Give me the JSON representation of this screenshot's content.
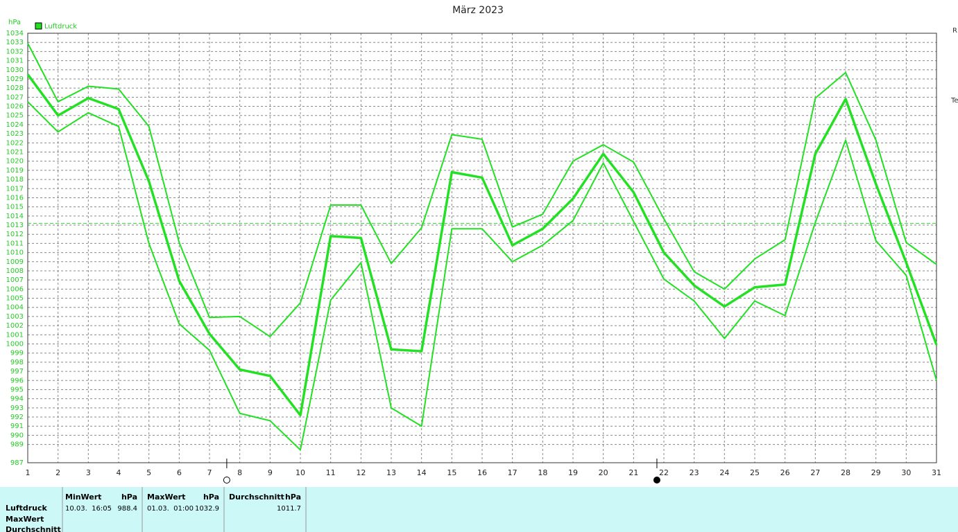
{
  "chart_data": {
    "type": "line",
    "title": "März 2023",
    "y_unit": "hPa",
    "legend": "Luftdruck",
    "color": "#22e022",
    "x": [
      1,
      2,
      3,
      4,
      5,
      6,
      7,
      8,
      9,
      10,
      11,
      12,
      13,
      14,
      15,
      16,
      17,
      18,
      19,
      20,
      21,
      22,
      23,
      24,
      25,
      26,
      27,
      28,
      29,
      30,
      31
    ],
    "xlim": [
      1,
      31
    ],
    "ylim": [
      987,
      1034
    ],
    "yticks": [
      987,
      989,
      990,
      991,
      992,
      993,
      994,
      995,
      996,
      997,
      998,
      999,
      1000,
      1001,
      1002,
      1003,
      1004,
      1005,
      1006,
      1007,
      1008,
      1009,
      1010,
      1011,
      1012,
      1013,
      1014,
      1015,
      1016,
      1017,
      1018,
      1019,
      1020,
      1021,
      1022,
      1023,
      1024,
      1025,
      1026,
      1027,
      1028,
      1029,
      1030,
      1031,
      1032,
      1033,
      1034
    ],
    "grid": true,
    "mean_line": 1013.2,
    "moon_markers": [
      {
        "x": 7.57,
        "filled": false
      },
      {
        "x": 21.77,
        "filled": true
      }
    ],
    "series": [
      {
        "color": "#22e022",
        "thick": false,
        "values": [
          1032.9,
          1026.5,
          1028.2,
          1027.9,
          1023.8,
          1011.1,
          1002.9,
          1003.0,
          1000.8,
          1004.5,
          1015.2,
          1015.2,
          1008.8,
          1012.7,
          1022.9,
          1022.4,
          1012.8,
          1014.2,
          1020.0,
          1021.8,
          1019.9,
          1013.7,
          1007.9,
          1006.0,
          1009.3,
          1011.4,
          1026.9,
          1029.7,
          1022.3,
          1011.1,
          1008.7
        ]
      },
      {
        "color": "#22e022",
        "thick": true,
        "values": [
          1029.5,
          1025.0,
          1026.9,
          1025.7,
          1017.8,
          1006.9,
          1001.1,
          997.2,
          996.5,
          992.2,
          1011.8,
          1011.6,
          999.4,
          999.2,
          1018.8,
          1018.2,
          1010.8,
          1012.6,
          1015.9,
          1020.8,
          1016.6,
          1010.0,
          1006.4,
          1004.1,
          1006.2,
          1006.5,
          1020.8,
          1026.8,
          1017.5,
          1008.9,
          999.9
        ]
      },
      {
        "color": "#22e022",
        "thick": false,
        "values": [
          1026.5,
          1023.2,
          1025.3,
          1023.8,
          1011.0,
          1002.2,
          999.3,
          992.4,
          991.6,
          988.4,
          1004.8,
          1008.9,
          993.0,
          991.0,
          1012.6,
          1012.6,
          1009.0,
          1010.8,
          1013.5,
          1019.8,
          1013.4,
          1007.1,
          1004.7,
          1000.6,
          1004.7,
          1003.1,
          1013.3,
          1022.3,
          1011.3,
          1007.5,
          996.0
        ]
      }
    ]
  },
  "side_labels": [
    "R",
    "Te"
  ],
  "table": {
    "row_labels": [
      "Luftdruck",
      "MaxWert",
      "Durchschnitt"
    ],
    "columns": [
      {
        "header": "MinWert",
        "unit": "hPa",
        "time": "10.03.  16:05",
        "value": "988.4"
      },
      {
        "header": "MaxWert",
        "unit": "hPa",
        "time": "01.03.  01:00",
        "value": "1032.9"
      },
      {
        "header": "Durchschnitt",
        "unit": "hPa",
        "value": "1011.7"
      }
    ]
  }
}
